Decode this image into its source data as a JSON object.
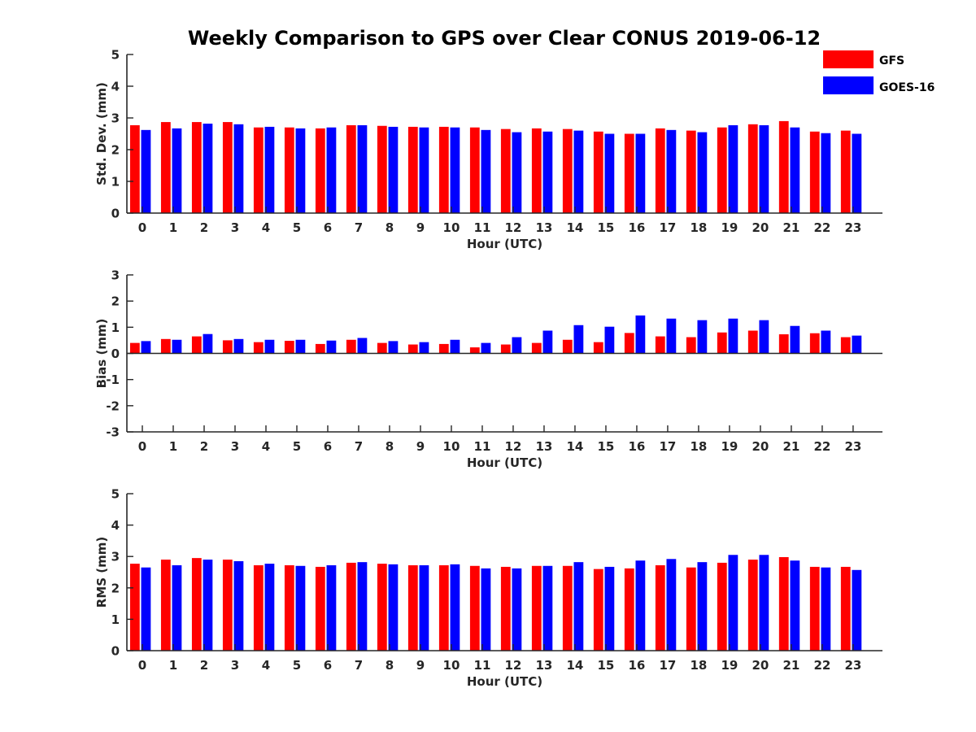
{
  "chart_data": {
    "type": "bar",
    "title": "Weekly Comparison to GPS over Clear CONUS 2019-06-12",
    "legend": {
      "placement": "top-right",
      "entries": [
        {
          "name": "GFS",
          "color": "#ff0000"
        },
        {
          "name": "GOES-16",
          "color": "#0000ff"
        }
      ]
    },
    "categories": [
      "0",
      "1",
      "2",
      "3",
      "4",
      "5",
      "6",
      "7",
      "8",
      "9",
      "10",
      "11",
      "12",
      "13",
      "14",
      "15",
      "16",
      "17",
      "18",
      "19",
      "20",
      "21",
      "22",
      "23"
    ],
    "panels": [
      {
        "ylabel": "Std. Dev. (mm)",
        "xlabel": "Hour (UTC)",
        "ylim": [
          0,
          5
        ],
        "yticks": [
          "0",
          "1",
          "2",
          "3",
          "4",
          "5"
        ],
        "series": [
          {
            "name": "GFS",
            "color": "#ff0000",
            "values": [
              2.77,
              2.87,
              2.87,
              2.87,
              2.7,
              2.7,
              2.67,
              2.77,
              2.75,
              2.72,
              2.72,
              2.7,
              2.65,
              2.67,
              2.65,
              2.57,
              2.5,
              2.67,
              2.6,
              2.7,
              2.8,
              2.9,
              2.57,
              2.6
            ]
          },
          {
            "name": "GOES-16",
            "color": "#0000ff",
            "values": [
              2.62,
              2.67,
              2.82,
              2.8,
              2.72,
              2.67,
              2.7,
              2.77,
              2.72,
              2.7,
              2.7,
              2.62,
              2.55,
              2.57,
              2.6,
              2.5,
              2.5,
              2.62,
              2.55,
              2.77,
              2.77,
              2.7,
              2.52,
              2.5
            ]
          }
        ]
      },
      {
        "ylabel": "Bias (mm)",
        "xlabel": "Hour (UTC)",
        "ylim": [
          -3,
          3
        ],
        "yticks": [
          "-3",
          "-2",
          "-1",
          "0",
          "1",
          "2",
          "3"
        ],
        "series": [
          {
            "name": "GFS",
            "color": "#ff0000",
            "values": [
              0.4,
              0.55,
              0.65,
              0.5,
              0.43,
              0.48,
              0.36,
              0.52,
              0.4,
              0.34,
              0.36,
              0.23,
              0.34,
              0.4,
              0.52,
              0.43,
              0.78,
              0.65,
              0.62,
              0.8,
              0.87,
              0.73,
              0.77,
              0.62
            ]
          },
          {
            "name": "GOES-16",
            "color": "#0000ff",
            "values": [
              0.47,
              0.52,
              0.74,
              0.55,
              0.52,
              0.52,
              0.49,
              0.59,
              0.47,
              0.43,
              0.52,
              0.4,
              0.62,
              0.87,
              1.08,
              1.02,
              1.45,
              1.33,
              1.27,
              1.33,
              1.27,
              1.05,
              0.87,
              0.68
            ]
          }
        ]
      },
      {
        "ylabel": "RMS (mm)",
        "xlabel": "Hour (UTC)",
        "ylim": [
          0,
          5
        ],
        "yticks": [
          "0",
          "1",
          "2",
          "3",
          "4",
          "5"
        ],
        "series": [
          {
            "name": "GFS",
            "color": "#ff0000",
            "values": [
              2.77,
              2.9,
              2.95,
              2.9,
              2.72,
              2.72,
              2.67,
              2.8,
              2.77,
              2.72,
              2.72,
              2.7,
              2.67,
              2.7,
              2.7,
              2.6,
              2.62,
              2.72,
              2.65,
              2.8,
              2.9,
              2.98,
              2.67,
              2.67
            ]
          },
          {
            "name": "GOES-16",
            "color": "#0000ff",
            "values": [
              2.65,
              2.72,
              2.9,
              2.85,
              2.77,
              2.7,
              2.72,
              2.82,
              2.75,
              2.72,
              2.75,
              2.62,
              2.62,
              2.7,
              2.82,
              2.67,
              2.87,
              2.92,
              2.82,
              3.05,
              3.05,
              2.87,
              2.65,
              2.57
            ]
          }
        ]
      }
    ]
  }
}
